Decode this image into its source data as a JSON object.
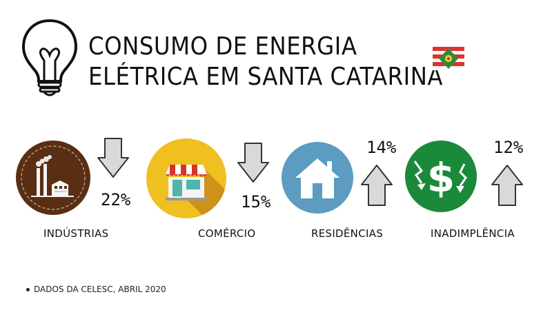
{
  "title": {
    "line1": "CONSUMO DE ENERGIA",
    "line2": "ELÉTRICA EM SANTA CATARINA"
  },
  "icons": {
    "bulb": "light-bulb-icon",
    "flag": "santa-catarina-flag-icon"
  },
  "categories": [
    {
      "label": "INDÚSTRIAS",
      "percent": "22%",
      "direction": "down",
      "icon": "factory-icon",
      "color": "#5a2e12"
    },
    {
      "label": "COMÉRCIO",
      "percent": "15%",
      "direction": "down",
      "icon": "store-icon",
      "color": "#f0c020"
    },
    {
      "label": "RESIDÊNCIAS",
      "percent": "14%",
      "direction": "up",
      "icon": "house-icon",
      "color": "#5b9cc0"
    },
    {
      "label": "INADIMPLÊNCIA",
      "percent": "12%",
      "direction": "up",
      "icon": "dollar-icon",
      "color": "#1a8a3a"
    }
  ],
  "footer": {
    "text": "DADOS DA CELESC,  ABRIL 2020"
  },
  "colors": {
    "arrow_fill": "#d9d9d9",
    "arrow_stroke": "#333333",
    "flag_red": "#e0322c"
  }
}
